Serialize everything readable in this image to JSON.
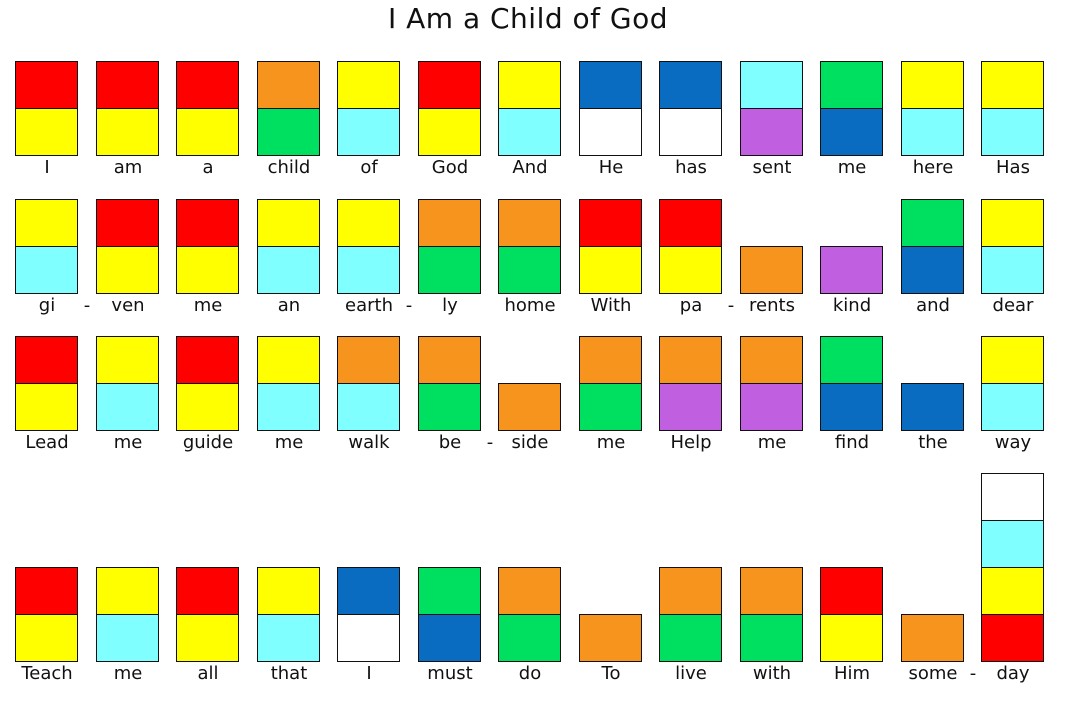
{
  "title": "I Am a Child of God",
  "palette": {
    "R": "#ff0000",
    "Y": "#ffff00",
    "O": "#f7941d",
    "G": "#00e060",
    "C": "#7fffff",
    "B": "#0a6cc0",
    "P": "#c060e0",
    "W": "#ffffff"
  },
  "rows": [
    [
      {
        "word": "I",
        "stack": [
          "R",
          "Y"
        ]
      },
      {
        "word": "am",
        "stack": [
          "R",
          "Y"
        ]
      },
      {
        "word": "a",
        "stack": [
          "R",
          "Y"
        ]
      },
      {
        "word": "child",
        "stack": [
          "O",
          "G"
        ]
      },
      {
        "word": "of",
        "stack": [
          "Y",
          "C"
        ]
      },
      {
        "word": "God",
        "stack": [
          "R",
          "Y"
        ]
      },
      {
        "word": "And",
        "stack": [
          "Y",
          "C"
        ]
      },
      {
        "word": "He",
        "stack": [
          "B",
          "W"
        ]
      },
      {
        "word": "has",
        "stack": [
          "B",
          "W"
        ]
      },
      {
        "word": "sent",
        "stack": [
          "C",
          "P"
        ]
      },
      {
        "word": "me",
        "stack": [
          "G",
          "B"
        ]
      },
      {
        "word": "here",
        "stack": [
          "Y",
          "C"
        ]
      },
      {
        "word": "Has",
        "stack": [
          "Y",
          "C"
        ]
      }
    ],
    [
      {
        "word": "gi",
        "stack": [
          "Y",
          "C"
        ],
        "hyphen": true
      },
      {
        "word": "ven",
        "stack": [
          "R",
          "Y"
        ]
      },
      {
        "word": "me",
        "stack": [
          "R",
          "Y"
        ]
      },
      {
        "word": "an",
        "stack": [
          "Y",
          "C"
        ]
      },
      {
        "word": "earth",
        "stack": [
          "Y",
          "C"
        ],
        "hyphen": true
      },
      {
        "word": "ly",
        "stack": [
          "O",
          "G"
        ]
      },
      {
        "word": "home",
        "stack": [
          "O",
          "G"
        ]
      },
      {
        "word": "With",
        "stack": [
          "R",
          "Y"
        ]
      },
      {
        "word": "pa",
        "stack": [
          "R",
          "Y"
        ],
        "hyphen": true
      },
      {
        "word": "rents",
        "stack": [
          "O"
        ]
      },
      {
        "word": "kind",
        "stack": [
          "P"
        ]
      },
      {
        "word": "and",
        "stack": [
          "G",
          "B"
        ]
      },
      {
        "word": "dear",
        "stack": [
          "Y",
          "C"
        ]
      }
    ],
    [
      {
        "word": "Lead",
        "stack": [
          "R",
          "Y"
        ]
      },
      {
        "word": "me",
        "stack": [
          "Y",
          "C"
        ]
      },
      {
        "word": "guide",
        "stack": [
          "R",
          "Y"
        ]
      },
      {
        "word": "me",
        "stack": [
          "Y",
          "C"
        ]
      },
      {
        "word": "walk",
        "stack": [
          "O",
          "C"
        ]
      },
      {
        "word": "be",
        "stack": [
          "O",
          "G"
        ],
        "hyphen": true
      },
      {
        "word": "side",
        "stack": [
          "O"
        ]
      },
      {
        "word": "me",
        "stack": [
          "O",
          "G"
        ]
      },
      {
        "word": "Help",
        "stack": [
          "O",
          "P"
        ]
      },
      {
        "word": "me",
        "stack": [
          "O",
          "P"
        ]
      },
      {
        "word": "find",
        "stack": [
          "G",
          "B"
        ]
      },
      {
        "word": "the",
        "stack": [
          "B"
        ]
      },
      {
        "word": "way",
        "stack": [
          "Y",
          "C"
        ]
      }
    ],
    [
      {
        "word": "Teach",
        "stack": [
          "R",
          "Y"
        ]
      },
      {
        "word": "me",
        "stack": [
          "Y",
          "C"
        ]
      },
      {
        "word": "all",
        "stack": [
          "R",
          "Y"
        ]
      },
      {
        "word": "that",
        "stack": [
          "Y",
          "C"
        ]
      },
      {
        "word": "I",
        "stack": [
          "B",
          "W"
        ]
      },
      {
        "word": "must",
        "stack": [
          "G",
          "B"
        ]
      },
      {
        "word": "do",
        "stack": [
          "O",
          "G"
        ]
      },
      {
        "word": "To",
        "stack": [
          "O"
        ]
      },
      {
        "word": "live",
        "stack": [
          "O",
          "G"
        ]
      },
      {
        "word": "with",
        "stack": [
          "O",
          "G"
        ]
      },
      {
        "word": "Him",
        "stack": [
          "R",
          "Y"
        ]
      },
      {
        "word": "some",
        "stack": [
          "O"
        ],
        "hyphen": true
      },
      {
        "word": "day",
        "stack": [
          "W",
          "C",
          "Y",
          "R"
        ]
      }
    ]
  ]
}
